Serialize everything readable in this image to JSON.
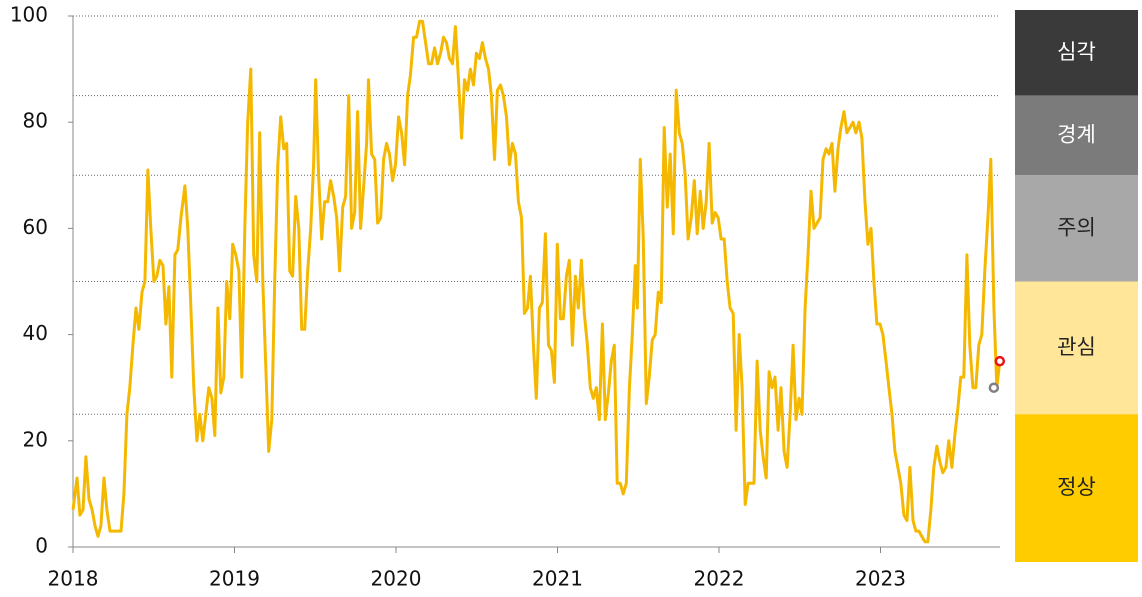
{
  "chart_data": {
    "type": "line",
    "color": "#f5b800",
    "xlim": [
      2018,
      2023.74
    ],
    "xticks": [
      2018,
      2019,
      2020,
      2021,
      2022,
      2023
    ],
    "ylim": [
      0,
      100
    ],
    "yticks": [
      0,
      20,
      40,
      60,
      80,
      100
    ],
    "bands": [
      {
        "label": "심각",
        "from": 85,
        "to": 100,
        "color": "#3a3a3a",
        "label_color": "#ffffff"
      },
      {
        "label": "경계",
        "from": 70,
        "to": 85,
        "color": "#7b7b7b",
        "label_color": "#ffffff"
      },
      {
        "label": "주의",
        "from": 50,
        "to": 70,
        "color": "#a8a8a8",
        "label_color": "#222222"
      },
      {
        "label": "관심",
        "from": 25,
        "to": 50,
        "color": "#ffe699",
        "label_color": "#222222"
      },
      {
        "label": "정상",
        "from": 0,
        "to": 25,
        "color": "#ffcc00",
        "label_color": "#222222"
      }
    ],
    "x": [
      2018,
      2018.025,
      2018.043,
      2018.062,
      2018.08,
      2018.099,
      2018.118,
      2018.136,
      2018.155,
      2018.173,
      2018.192,
      2018.21,
      2018.229,
      2018.247,
      2018.278,
      2018.297,
      2018.315,
      2018.334,
      2018.352,
      2018.371,
      2018.39,
      2018.408,
      2018.427,
      2018.445,
      2018.464,
      2018.482,
      2018.501,
      2018.519,
      2018.538,
      2018.557,
      2018.575,
      2018.594,
      2018.612,
      2018.631,
      2018.649,
      2018.668,
      2018.693,
      2018.711,
      2018.73,
      2018.748,
      2018.767,
      2018.785,
      2018.804,
      2018.822,
      2018.841,
      2018.86,
      2018.878,
      2018.897,
      2018.915,
      2018.934,
      2018.952,
      2018.971,
      2018.989,
      2019.008,
      2019.027,
      2019.045,
      2019.064,
      2019.082,
      2019.101,
      2019.119,
      2019.138,
      2019.156,
      2019.175,
      2019.194,
      2019.212,
      2019.231,
      2019.249,
      2019.268,
      2019.286,
      2019.305,
      2019.323,
      2019.342,
      2019.36,
      2019.379,
      2019.398,
      2019.416,
      2019.435,
      2019.453,
      2019.472,
      2019.49,
      2019.503,
      2019.521,
      2019.54,
      2019.558,
      2019.577,
      2019.595,
      2019.614,
      2019.633,
      2019.651,
      2019.67,
      2019.688,
      2019.707,
      2019.725,
      2019.744,
      2019.762,
      2019.781,
      2019.8,
      2019.818,
      2019.83,
      2019.849,
      2019.868,
      2019.886,
      2019.905,
      2019.923,
      2019.942,
      2019.96,
      2019.979,
      2019.997,
      2020.016,
      2020.035,
      2020.053,
      2020.072,
      2020.09,
      2020.109,
      2020.127,
      2020.146,
      2020.164,
      2020.183,
      2020.202,
      2020.22,
      2020.239,
      2020.257,
      2020.276,
      2020.294,
      2020.313,
      2020.331,
      2020.35,
      2020.368,
      2020.387,
      2020.406,
      2020.424,
      2020.443,
      2020.461,
      2020.48,
      2020.498,
      2020.517,
      2020.535,
      2020.554,
      2020.573,
      2020.591,
      2020.61,
      2020.628,
      2020.647,
      2020.665,
      2020.684,
      2020.702,
      2020.721,
      2020.74,
      2020.758,
      2020.777,
      2020.795,
      2020.814,
      2020.832,
      2020.851,
      2020.869,
      2020.888,
      2020.906,
      2020.925,
      2020.944,
      2020.962,
      2020.981,
      2020.999,
      2021.018,
      2021.036,
      2021.055,
      2021.073,
      2021.092,
      2021.111,
      2021.129,
      2021.148,
      2021.166,
      2021.185,
      2021.203,
      2021.222,
      2021.24,
      2021.259,
      2021.278,
      2021.296,
      2021.315,
      2021.333,
      2021.352,
      2021.37,
      2021.389,
      2021.407,
      2021.426,
      2021.445,
      2021.463,
      2021.482,
      2021.494,
      2021.513,
      2021.531,
      2021.55,
      2021.568,
      2021.587,
      2021.605,
      2021.624,
      2021.642,
      2021.661,
      2021.68,
      2021.698,
      2021.717,
      2021.735,
      2021.754,
      2021.772,
      2021.791,
      2021.809,
      2021.828,
      2021.847,
      2021.865,
      2021.884,
      2021.902,
      2021.921,
      2021.939,
      2021.958,
      2021.976,
      2021.995,
      2022.013,
      2022.032,
      2022.051,
      2022.069,
      2022.088,
      2022.106,
      2022.125,
      2022.143,
      2022.162,
      2022.18,
      2022.199,
      2022.217,
      2022.236,
      2022.255,
      2022.273,
      2022.292,
      2022.31,
      2022.329,
      2022.347,
      2022.366,
      2022.384,
      2022.403,
      2022.422,
      2022.44,
      2022.459,
      2022.477,
      2022.496,
      2022.514,
      2022.533,
      2022.551,
      2022.57,
      2022.588,
      2022.607,
      2022.626,
      2022.644,
      2022.663,
      2022.681,
      2022.7,
      2022.718,
      2022.737,
      2022.755,
      2022.774,
      2022.792,
      2022.811,
      2022.83,
      2022.848,
      2022.867,
      2022.885,
      2022.904,
      2022.922,
      2022.941,
      2022.959,
      2022.978,
      2022.997,
      2023.015,
      2023.034,
      2023.052,
      2023.071,
      2023.089,
      2023.108,
      2023.126,
      2023.145,
      2023.164,
      2023.182,
      2023.201,
      2023.219,
      2023.238,
      2023.256,
      2023.275,
      2023.293,
      2023.312,
      2023.33,
      2023.349,
      2023.368,
      2023.386,
      2023.405,
      2023.423,
      2023.442,
      2023.46,
      2023.479,
      2023.497,
      2023.516,
      2023.535,
      2023.553,
      2023.572,
      2023.59,
      2023.609,
      2023.627,
      2023.646,
      2023.665,
      2023.683,
      2023.702,
      2023.72,
      2023.739
    ],
    "values": [
      7,
      13,
      6,
      7,
      17,
      9,
      7,
      4,
      2,
      4,
      13,
      7,
      3,
      3,
      3,
      3,
      10,
      25,
      30,
      38,
      45,
      41,
      48,
      50,
      71,
      60,
      50,
      51,
      54,
      53,
      42,
      49,
      32,
      55,
      56,
      62,
      68,
      60,
      45,
      30,
      20,
      25,
      20,
      25,
      30,
      28,
      21,
      45,
      29,
      32,
      50,
      43,
      57,
      55,
      52,
      32,
      60,
      80,
      90,
      55,
      50,
      78,
      50,
      34,
      18,
      24,
      50,
      72,
      81,
      75,
      76,
      52,
      51,
      66,
      60,
      41,
      41,
      52,
      60,
      72,
      88,
      70,
      58,
      65,
      65,
      69,
      66,
      62,
      52,
      64,
      66,
      85,
      60,
      63,
      82,
      60,
      68,
      76,
      88,
      74,
      73,
      61,
      62,
      73,
      76,
      74,
      69,
      72,
      81,
      78,
      72,
      85,
      89,
      96,
      96,
      99,
      99,
      95,
      91,
      91,
      94,
      91,
      93,
      96,
      95,
      92,
      91,
      98,
      88,
      77,
      88,
      86,
      90,
      87,
      93,
      92,
      95,
      92,
      90,
      85,
      73,
      86,
      87,
      85,
      81,
      72,
      76,
      74,
      65,
      62,
      44,
      45,
      51,
      38,
      28,
      45,
      46,
      59,
      38,
      37,
      31,
      57,
      43,
      43,
      51,
      54,
      38,
      51,
      45,
      54,
      44,
      38,
      30,
      28,
      30,
      24,
      42,
      24,
      29,
      35,
      38,
      12,
      12,
      10,
      12,
      30,
      40,
      53,
      45,
      73,
      58,
      27,
      32,
      39,
      40,
      48,
      46,
      79,
      64,
      74,
      59,
      86,
      78,
      76,
      70,
      58,
      62,
      69,
      59,
      67,
      60,
      65,
      76,
      61,
      63,
      62,
      58,
      58,
      50,
      45,
      44,
      22,
      40,
      30,
      8,
      12,
      12,
      12,
      35,
      22,
      17,
      13,
      33,
      30,
      32,
      22,
      30,
      18,
      15,
      25,
      38,
      24,
      28,
      25,
      45,
      55,
      67,
      60,
      61,
      62,
      73,
      75,
      74,
      76,
      67,
      75,
      79,
      82,
      78,
      79,
      80,
      78,
      80,
      77,
      65,
      57,
      60,
      50,
      42,
      42,
      40,
      35,
      30,
      25,
      18,
      15,
      12,
      6,
      5,
      15,
      5,
      3,
      3,
      2,
      1,
      1,
      7,
      15,
      19,
      16,
      14,
      15,
      20,
      15,
      21,
      26,
      32,
      32,
      55,
      38,
      30,
      30,
      38,
      40,
      52,
      62,
      73,
      45,
      30,
      35
    ],
    "points": [
      {
        "x": 2023.739,
        "value": 35,
        "color": "#e8141c"
      },
      {
        "x": 2023.702,
        "value": 30,
        "color": "#808080"
      }
    ]
  }
}
